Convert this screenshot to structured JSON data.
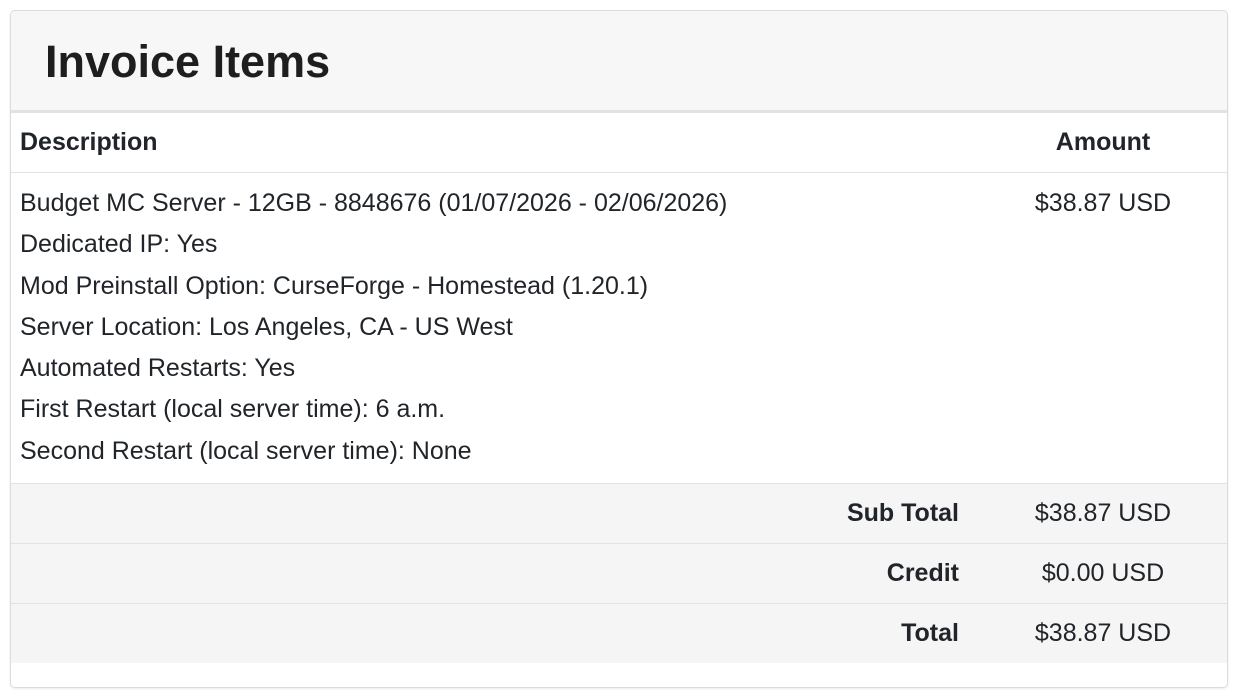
{
  "header": {
    "title": "Invoice Items"
  },
  "table": {
    "columns": [
      "Description",
      "Amount"
    ],
    "items": [
      {
        "lines": [
          "Budget MC Server - 12GB - 8848676 (01/07/2026 - 02/06/2026)",
          "Dedicated IP: Yes",
          "Mod Preinstall Option: CurseForge - Homestead (1.20.1)",
          "Server Location: Los Angeles, CA - US West",
          "Automated Restarts: Yes",
          "First Restart (local server time): 6 a.m.",
          "Second Restart (local server time): None"
        ],
        "amount": "$38.87 USD"
      }
    ],
    "totals": [
      {
        "label": "Sub Total",
        "value": "$38.87 USD"
      },
      {
        "label": "Credit",
        "value": "$0.00 USD"
      },
      {
        "label": "Total",
        "value": "$38.87 USD"
      }
    ]
  }
}
